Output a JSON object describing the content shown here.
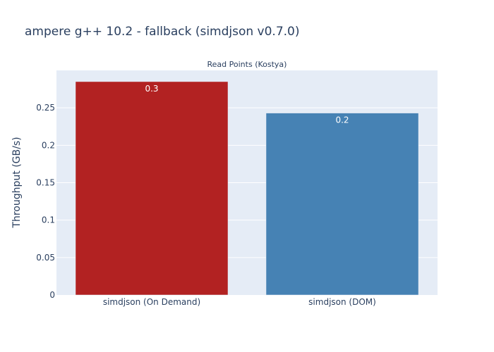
{
  "chart_data": {
    "type": "bar",
    "title": "ampere g++ 10.2 - fallback (simdjson v0.7.0)",
    "subtitle": "Read Points (Kostya)",
    "xlabel": "",
    "ylabel": "Throughput (GB/s)",
    "categories": [
      "simdjson (On Demand)",
      "simdjson (DOM)"
    ],
    "values": [
      0.285,
      0.243
    ],
    "data_labels": [
      "0.3",
      "0.2"
    ],
    "colors": [
      "#b22222",
      "#4682b4"
    ],
    "ylim": [
      0,
      0.3
    ],
    "yticks": [
      0,
      0.05,
      0.1,
      0.15,
      0.2,
      0.25
    ],
    "ytick_labels": [
      "0",
      "0.05",
      "0.1",
      "0.15",
      "0.2",
      "0.25"
    ],
    "grid": true,
    "plot_background": "#e5ecf6"
  }
}
